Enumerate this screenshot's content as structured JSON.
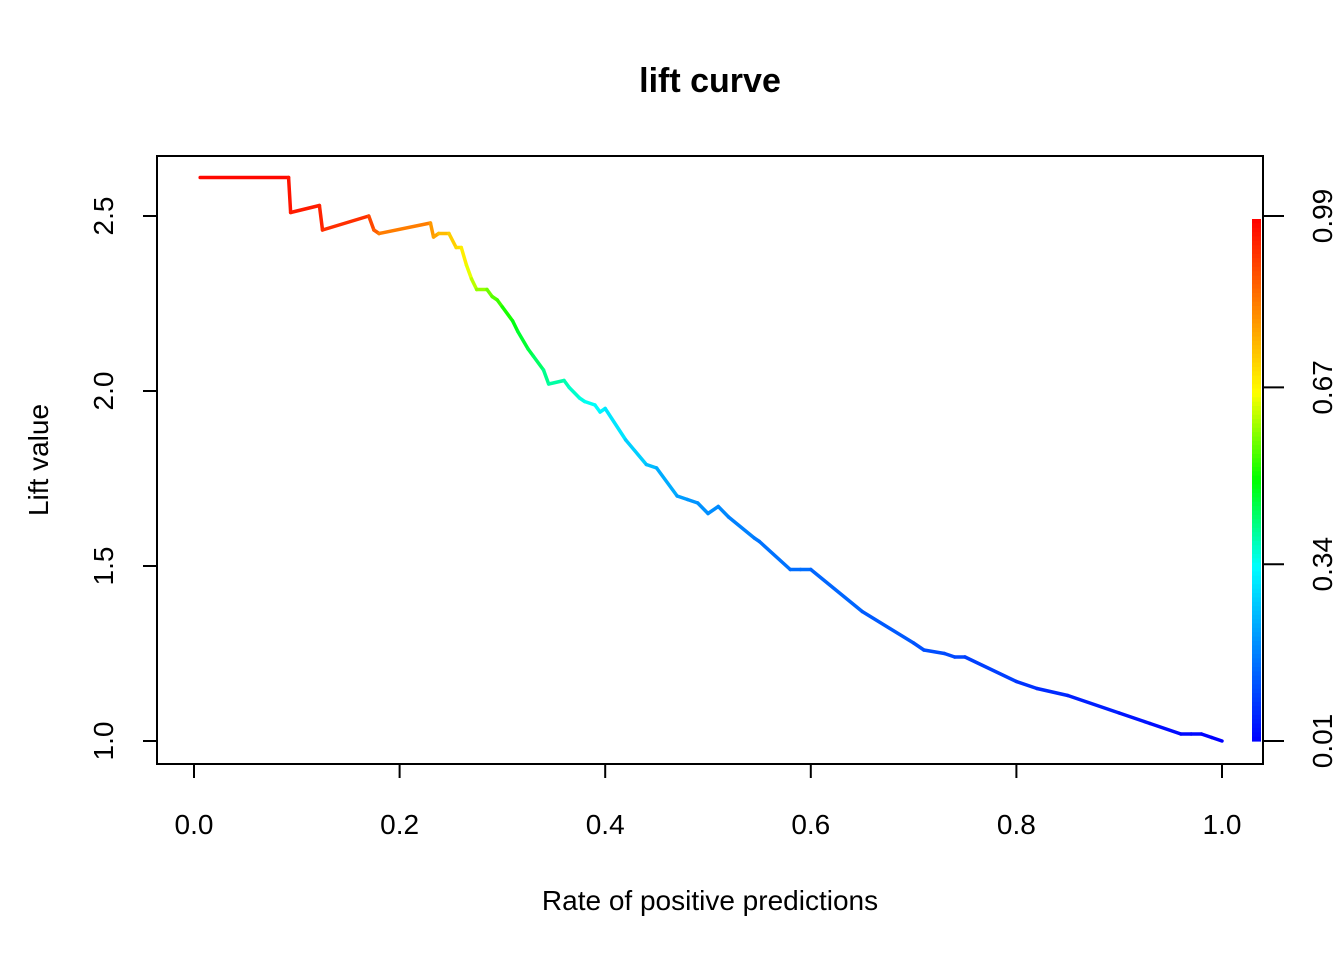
{
  "chart_data": {
    "type": "line",
    "title": "lift curve",
    "xlabel": "Rate of positive predictions",
    "ylabel": "Lift value",
    "xlim": [
      0.0,
      1.0
    ],
    "ylim": [
      1.0,
      2.6
    ],
    "x_ticks": [
      "0.0",
      "0.2",
      "0.4",
      "0.6",
      "0.8",
      "1.0"
    ],
    "y_ticks": [
      "1.0",
      "1.5",
      "2.0",
      "2.5"
    ],
    "colorbar_ticks": [
      "0.01",
      "0.34",
      "0.67",
      "0.99"
    ],
    "colorbar_range": [
      0.01,
      0.99
    ],
    "color_scale": [
      "#ff0000",
      "#ff8000",
      "#ffff00",
      "#00ff00",
      "#00ffff",
      "#0080ff",
      "#0000ff"
    ],
    "series": [
      {
        "x": [
          0.006,
          0.092,
          0.094,
          0.122,
          0.125,
          0.17,
          0.175,
          0.18,
          0.23,
          0.233,
          0.238,
          0.248,
          0.255,
          0.26,
          0.265,
          0.27,
          0.275,
          0.285,
          0.29,
          0.295,
          0.3,
          0.31,
          0.315,
          0.325,
          0.33,
          0.34,
          0.345,
          0.36,
          0.365,
          0.375,
          0.38,
          0.39,
          0.395,
          0.4,
          0.42,
          0.44,
          0.45,
          0.47,
          0.48,
          0.49,
          0.5,
          0.51,
          0.52,
          0.545,
          0.55,
          0.58,
          0.59,
          0.6,
          0.65,
          0.7,
          0.71,
          0.73,
          0.74,
          0.75,
          0.8,
          0.82,
          0.85,
          0.9,
          0.93,
          0.96,
          0.97,
          0.98,
          0.99,
          1.0
        ],
        "y": [
          2.61,
          2.61,
          2.51,
          2.53,
          2.46,
          2.5,
          2.46,
          2.45,
          2.48,
          2.44,
          2.45,
          2.45,
          2.41,
          2.41,
          2.36,
          2.32,
          2.29,
          2.29,
          2.27,
          2.26,
          2.24,
          2.2,
          2.17,
          2.12,
          2.1,
          2.06,
          2.02,
          2.03,
          2.01,
          1.98,
          1.97,
          1.96,
          1.94,
          1.95,
          1.86,
          1.79,
          1.78,
          1.7,
          1.69,
          1.68,
          1.65,
          1.67,
          1.64,
          1.58,
          1.57,
          1.49,
          1.49,
          1.49,
          1.37,
          1.28,
          1.26,
          1.25,
          1.24,
          1.24,
          1.17,
          1.15,
          1.13,
          1.08,
          1.05,
          1.02,
          1.02,
          1.02,
          1.01,
          1.0
        ],
        "cutoff": [
          0.99,
          0.97,
          0.96,
          0.95,
          0.94,
          0.92,
          0.88,
          0.86,
          0.8,
          0.79,
          0.77,
          0.73,
          0.72,
          0.7,
          0.67,
          0.63,
          0.61,
          0.58,
          0.56,
          0.55,
          0.53,
          0.5,
          0.48,
          0.46,
          0.45,
          0.42,
          0.4,
          0.39,
          0.38,
          0.36,
          0.35,
          0.34,
          0.33,
          0.32,
          0.29,
          0.26,
          0.24,
          0.22,
          0.2,
          0.2,
          0.19,
          0.19,
          0.18,
          0.17,
          0.16,
          0.15,
          0.15,
          0.15,
          0.13,
          0.12,
          0.11,
          0.11,
          0.1,
          0.1,
          0.08,
          0.07,
          0.06,
          0.04,
          0.03,
          0.02,
          0.02,
          0.02,
          0.01,
          0.01
        ]
      }
    ],
    "grid": false,
    "legend": "colorbar-right"
  }
}
